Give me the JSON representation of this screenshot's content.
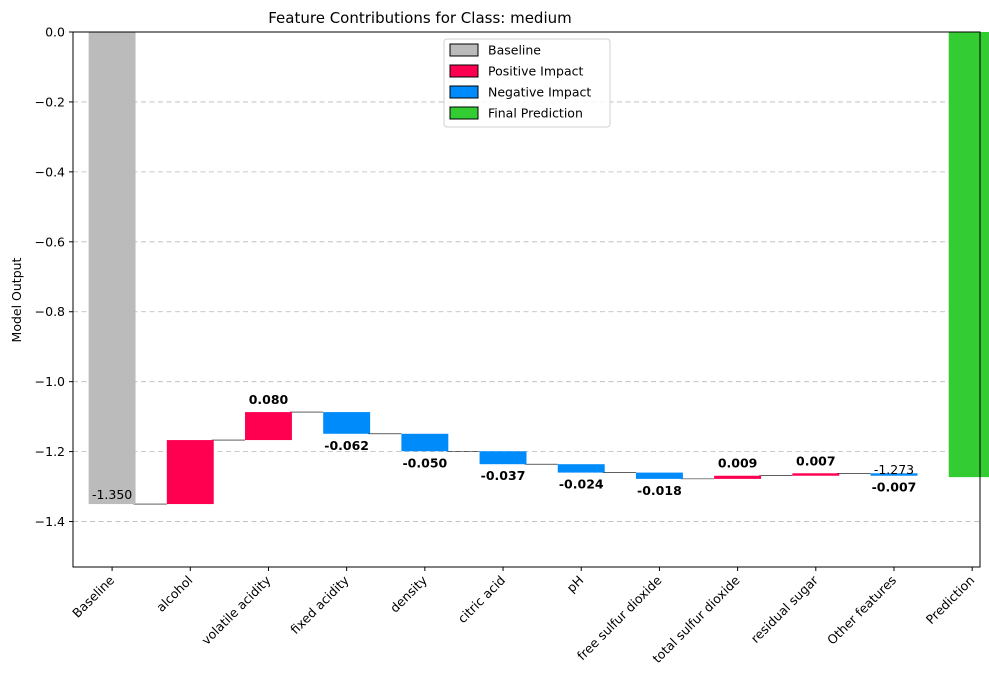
{
  "chart_data": {
    "type": "bar",
    "subtype": "waterfall",
    "title": "Feature Contributions for Class: medium",
    "xlabel": "",
    "ylabel": "Model Output",
    "ylim": [
      -1.53,
      0.0
    ],
    "yticks": [
      0.0,
      -0.2,
      -0.4,
      -0.6,
      -0.8,
      -1.0,
      -1.2,
      -1.4
    ],
    "ytick_labels": [
      "0.0",
      "−0.2",
      "−0.4",
      "−0.6",
      "−0.8",
      "−1.0",
      "−1.2",
      "−1.4"
    ],
    "grid": "horizontal-dashed",
    "legend_position": "top-center",
    "categories": [
      "Baseline",
      "alcohol",
      "volatile acidity",
      "fixed acidity",
      "density",
      "citric acid",
      "pH",
      "free sulfur dioxide",
      "total sulfur dioxide",
      "residual sugar",
      "Other features",
      "Prediction"
    ],
    "baseline": -1.35,
    "baseline_label": "-1.350",
    "contributions": [
      0.183,
      0.08,
      -0.062,
      -0.05,
      -0.037,
      -0.024,
      -0.018,
      0.009,
      0.007,
      -0.007
    ],
    "contribution_labels": [
      "",
      "0.080",
      "-0.062",
      "-0.050",
      "-0.037",
      "-0.024",
      "-0.018",
      "0.009",
      "0.007",
      "-0.007"
    ],
    "prediction": -1.273,
    "prediction_label": "-1.273",
    "legend": [
      {
        "name": "Baseline",
        "color": "#bbbbbb"
      },
      {
        "name": "Positive Impact",
        "color": "#ff0051"
      },
      {
        "name": "Negative Impact",
        "color": "#008bfb"
      },
      {
        "name": "Final Prediction",
        "color": "#33cc33"
      }
    ]
  }
}
